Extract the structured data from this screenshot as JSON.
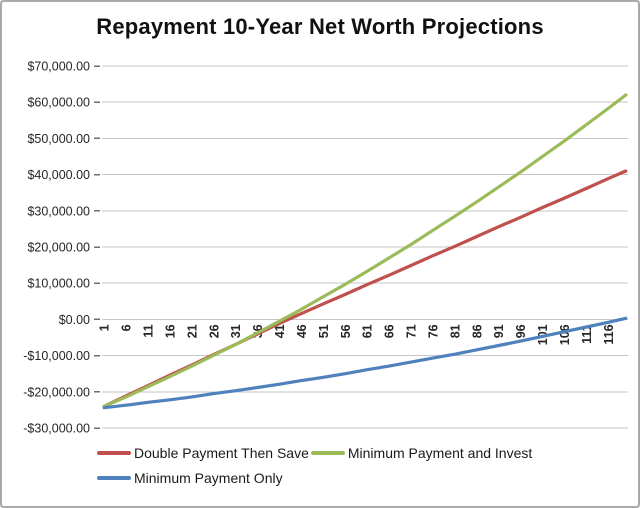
{
  "chart_data": {
    "type": "line",
    "title": "Repayment 10-Year Net Worth Projections",
    "xlabel": "",
    "ylabel": "",
    "grid": true,
    "legend_position": "bottom",
    "xlim": [
      1,
      120
    ],
    "ylim": [
      -30000,
      70000
    ],
    "x": [
      1,
      6,
      11,
      16,
      21,
      26,
      31,
      36,
      41,
      46,
      51,
      56,
      61,
      66,
      71,
      76,
      81,
      86,
      91,
      96,
      101,
      106,
      111,
      116,
      120
    ],
    "x_tick_labels": [
      "1",
      "6",
      "11",
      "16",
      "21",
      "26",
      "31",
      "36",
      "41",
      "46",
      "51",
      "56",
      "61",
      "66",
      "71",
      "76",
      "81",
      "86",
      "91",
      "96",
      "101",
      "106",
      "111",
      "116"
    ],
    "y_ticks": [
      {
        "value": 70000,
        "label": "$70,000.00"
      },
      {
        "value": 60000,
        "label": "$60,000.00"
      },
      {
        "value": 50000,
        "label": "$50,000.00"
      },
      {
        "value": 40000,
        "label": "$40,000.00"
      },
      {
        "value": 30000,
        "label": "$30,000.00"
      },
      {
        "value": 20000,
        "label": "$20,000.00"
      },
      {
        "value": 10000,
        "label": "$10,000.00"
      },
      {
        "value": 0,
        "label": "$0.00"
      },
      {
        "value": -10000,
        "label": "-$10,000.00"
      },
      {
        "value": -20000,
        "label": "-$20,000.00"
      },
      {
        "value": -30000,
        "label": "-$30,000.00"
      }
    ],
    "series": [
      {
        "name": "Double Payment Then Save",
        "color": "#C0504D",
        "values": [
          -24000,
          -21100,
          -18300,
          -15400,
          -12600,
          -9700,
          -6900,
          -4000,
          -1100,
          1600,
          4300,
          6900,
          9600,
          12200,
          14900,
          17600,
          20200,
          22900,
          25600,
          28200,
          30900,
          33500,
          36200,
          38900,
          41000
        ]
      },
      {
        "name": "Minimum Payment and Invest",
        "color": "#9BBB59",
        "values": [
          -24000,
          -21400,
          -18600,
          -15800,
          -12900,
          -9900,
          -6900,
          -3700,
          -500,
          2800,
          6300,
          9700,
          13300,
          17000,
          20700,
          24600,
          28500,
          32500,
          36600,
          40700,
          45000,
          49300,
          53800,
          58300,
          62000
        ]
      },
      {
        "name": "Minimum Payment Only",
        "color": "#4F81BD",
        "values": [
          -24400,
          -23700,
          -22900,
          -22200,
          -21400,
          -20500,
          -19700,
          -18800,
          -17900,
          -16900,
          -16000,
          -15000,
          -13900,
          -12900,
          -11800,
          -10700,
          -9600,
          -8400,
          -7200,
          -6000,
          -4700,
          -3400,
          -2100,
          -800,
          300
        ]
      }
    ],
    "gridline_color": "#c6c6c6",
    "tick_color": "#6e6e6e",
    "label_color": "#262626"
  }
}
